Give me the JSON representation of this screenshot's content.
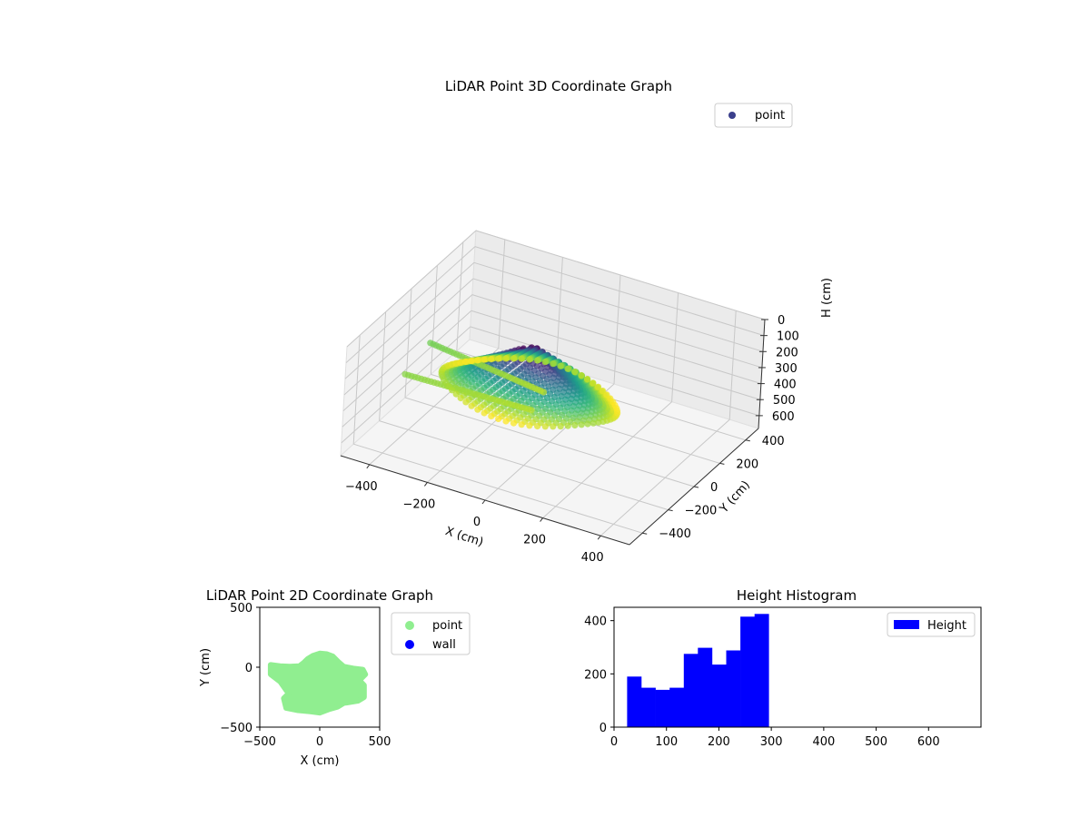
{
  "chart_data": [
    {
      "type": "scatter",
      "projection": "3d",
      "title": "LiDAR Point 3D Coordinate Graph",
      "xlabel": "X (cm)",
      "ylabel": "Y (cm)",
      "zlabel": "H (cm)",
      "xlim": [
        -500,
        500
      ],
      "ylim": [
        -500,
        500
      ],
      "zlim": [
        0,
        680
      ],
      "z_inverted": true,
      "xticks": [
        "−400",
        "−200",
        "0",
        "200",
        "400"
      ],
      "yticks": [
        "−400",
        "−200",
        "0",
        "200",
        "400"
      ],
      "zticks": [
        "0",
        "100",
        "200",
        "300",
        "400",
        "500",
        "600"
      ],
      "legend": [
        {
          "label": "point",
          "color": "#3b3f8c"
        }
      ],
      "legend_position": "upper-right",
      "colormap": "viridis",
      "grid": true,
      "series": [
        {
          "name": "point",
          "structure": "roughly horizontal disc of points (height ~20-290 cm) spanning x ≈ -400..380, y ≈ -370..120",
          "height_range": [
            20,
            290
          ],
          "x_range": [
            -400,
            380
          ],
          "y_range": [
            -370,
            120
          ]
        }
      ]
    },
    {
      "type": "scatter",
      "title": "LiDAR Point 2D Coordinate Graph",
      "xlabel": "X (cm)",
      "ylabel": "Y (cm)",
      "xlim": [
        -500,
        500
      ],
      "ylim": [
        -500,
        500
      ],
      "xticks": [
        "−500",
        "0",
        "500"
      ],
      "yticks": [
        "−500",
        "0",
        "500"
      ],
      "legend": [
        {
          "label": "point",
          "color": "#90ee90"
        },
        {
          "label": "wall",
          "color": "#0000ff"
        }
      ],
      "legend_position": "outside-right",
      "series": [
        {
          "name": "point",
          "color": "#90ee90",
          "outline": [
            [
              -410,
              20
            ],
            [
              -330,
              10
            ],
            [
              -250,
              5
            ],
            [
              -170,
              10
            ],
            [
              -130,
              40
            ],
            [
              -100,
              70
            ],
            [
              -60,
              95
            ],
            [
              0,
              115
            ],
            [
              60,
              110
            ],
            [
              110,
              90
            ],
            [
              160,
              40
            ],
            [
              200,
              5
            ],
            [
              280,
              -10
            ],
            [
              360,
              -20
            ],
            [
              380,
              -60
            ],
            [
              330,
              -110
            ],
            [
              370,
              -150
            ],
            [
              370,
              -250
            ],
            [
              320,
              -280
            ],
            [
              200,
              -300
            ],
            [
              150,
              -330
            ],
            [
              80,
              -350
            ],
            [
              0,
              -380
            ],
            [
              -80,
              -370
            ],
            [
              -180,
              -360
            ],
            [
              -280,
              -340
            ],
            [
              -300,
              -260
            ],
            [
              -260,
              -220
            ],
            [
              -330,
              -120
            ],
            [
              -410,
              -60
            ]
          ]
        },
        {
          "name": "wall",
          "color": "#0000ff",
          "points": []
        }
      ]
    },
    {
      "type": "bar",
      "subtype": "histogram",
      "title": "Height Histogram",
      "xlabel": "",
      "ylabel": "",
      "xlim": [
        0,
        700
      ],
      "ylim": [
        0,
        450
      ],
      "xticks": [
        "0",
        "100",
        "200",
        "300",
        "400",
        "500",
        "600"
      ],
      "yticks": [
        "0",
        "200",
        "400"
      ],
      "legend": [
        {
          "label": "Height",
          "color": "#0000ff"
        }
      ],
      "legend_position": "upper-right",
      "bin_edges": [
        25,
        52,
        79,
        106,
        133,
        160,
        187,
        214,
        241,
        268,
        295
      ],
      "series": [
        {
          "name": "Height",
          "color": "#0000ff",
          "values": [
            190,
            148,
            140,
            148,
            275,
            298,
            235,
            288,
            415,
            425
          ]
        }
      ]
    }
  ]
}
